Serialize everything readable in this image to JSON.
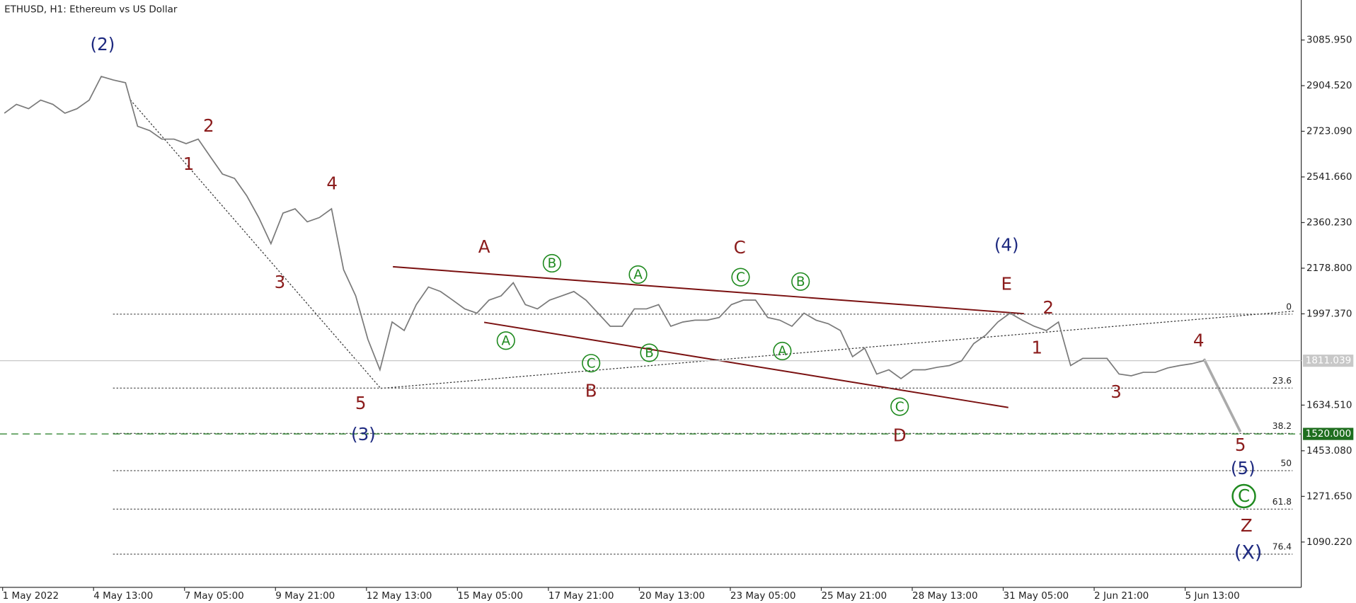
{
  "chart_data": {
    "type": "line",
    "title": "ETHUSD, H1:  Ethereum vs US Dollar",
    "color": "#7a7a7a",
    "values": [
      2795,
      2830,
      2813,
      2847,
      2830,
      2795,
      2813,
      2847,
      2941,
      2927,
      2916,
      2743,
      2726,
      2692,
      2692,
      2674,
      2692,
      2622,
      2553,
      2536,
      2467,
      2380,
      2276,
      2398,
      2415,
      2363,
      2380,
      2415,
      2173,
      2069,
      1896,
      1775,
      1965,
      1931,
      2034,
      2104,
      2086,
      2052,
      2017,
      2000,
      2052,
      2069,
      2121,
      2034,
      2017,
      2052,
      2069,
      2086,
      2052,
      2000,
      1948,
      1948,
      2017,
      2017,
      2034,
      1948,
      1965,
      1972,
      1972,
      1983,
      2034,
      2052,
      2052,
      1983,
      1972,
      1948,
      2000,
      1972,
      1958,
      1931,
      1827,
      1861,
      1758,
      1775,
      1740,
      1775,
      1775,
      1785,
      1792,
      1810,
      1879,
      1913,
      1965,
      2000,
      1972,
      1948,
      1931,
      1965,
      1792,
      1820,
      1820,
      1820,
      1758,
      1751,
      1765,
      1765,
      1782,
      1792,
      1799,
      1811
    ],
    "ylim": [
      910,
      3245
    ],
    "yticks": [
      {
        "value": 3085.95,
        "label": "3085.950"
      },
      {
        "value": 2904.52,
        "label": "2904.520"
      },
      {
        "value": 2723.09,
        "label": "2723.090"
      },
      {
        "value": 2541.66,
        "label": "2541.660"
      },
      {
        "value": 2360.23,
        "label": "2360.230"
      },
      {
        "value": 2178.8,
        "label": "2178.800"
      },
      {
        "value": 1997.37,
        "label": "1997.370"
      },
      {
        "value": 1634.51,
        "label": "1634.510"
      },
      {
        "value": 1453.08,
        "label": "1453.080"
      },
      {
        "value": 1271.65,
        "label": "1271.650"
      },
      {
        "value": 1090.22,
        "label": "1090.220"
      }
    ],
    "x_labels": [
      "1 May 2022",
      "4 May 13:00",
      "7 May 05:00",
      "9 May 21:00",
      "12 May 13:00",
      "15 May 05:00",
      "17 May 21:00",
      "20 May 13:00",
      "23 May 05:00",
      "25 May 21:00",
      "28 May 13:00",
      "31 May 05:00",
      "2 Jun 21:00",
      "5 Jun 13:00"
    ],
    "current_price": {
      "value": 1811.039,
      "label": "1811.039"
    },
    "target": {
      "value": 1520,
      "label": "1520.000"
    },
    "fib_levels": [
      {
        "ratio": 0,
        "price": 1996
      },
      {
        "ratio": 23.6,
        "price": 1702
      },
      {
        "ratio": 38.2,
        "price": 1522
      },
      {
        "ratio": 50,
        "price": 1374
      },
      {
        "ratio": 61.8,
        "price": 1221
      },
      {
        "ratio": 76.4,
        "price": 1042
      }
    ],
    "annotations": [
      "(2)",
      "2",
      "1",
      "4",
      "3",
      "5",
      "(3)",
      "A",
      "B",
      "A",
      "C",
      "C",
      "B",
      "(4)",
      "E",
      "2",
      "1",
      "A",
      "C",
      "B",
      "A",
      "B",
      "C",
      "D",
      "3",
      "4",
      "5",
      "(5)",
      "C",
      "Z",
      "(X)"
    ]
  }
}
